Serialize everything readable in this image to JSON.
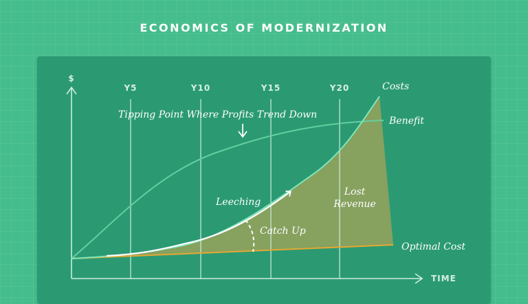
{
  "page": {
    "title": "ECONOMICS OF MODERNIZATION"
  },
  "axes": {
    "y_label": "$",
    "x_label": "TIME",
    "year_ticks": [
      "Y5",
      "Y10",
      "Y15",
      "Y20"
    ]
  },
  "curves": {
    "costs_label": "Costs",
    "benefit_label": "Benefit",
    "optimal_cost_label": "Optimal Cost"
  },
  "annotations": {
    "tipping_point": "Tipping Point Where Profits Trend Down",
    "leeching": "Leeching",
    "catch_up": "Catch Up",
    "lost_revenue_line1": "Lost",
    "lost_revenue_line2": "Revenue"
  },
  "colors": {
    "background": "#46bd8c",
    "board": "#2b9a73",
    "costs_curve": "#7fe6bb",
    "benefit_curve": "#63cf9f",
    "optimal_cost_line": "#e6a832",
    "lost_revenue_fill": "#94a25c"
  }
}
